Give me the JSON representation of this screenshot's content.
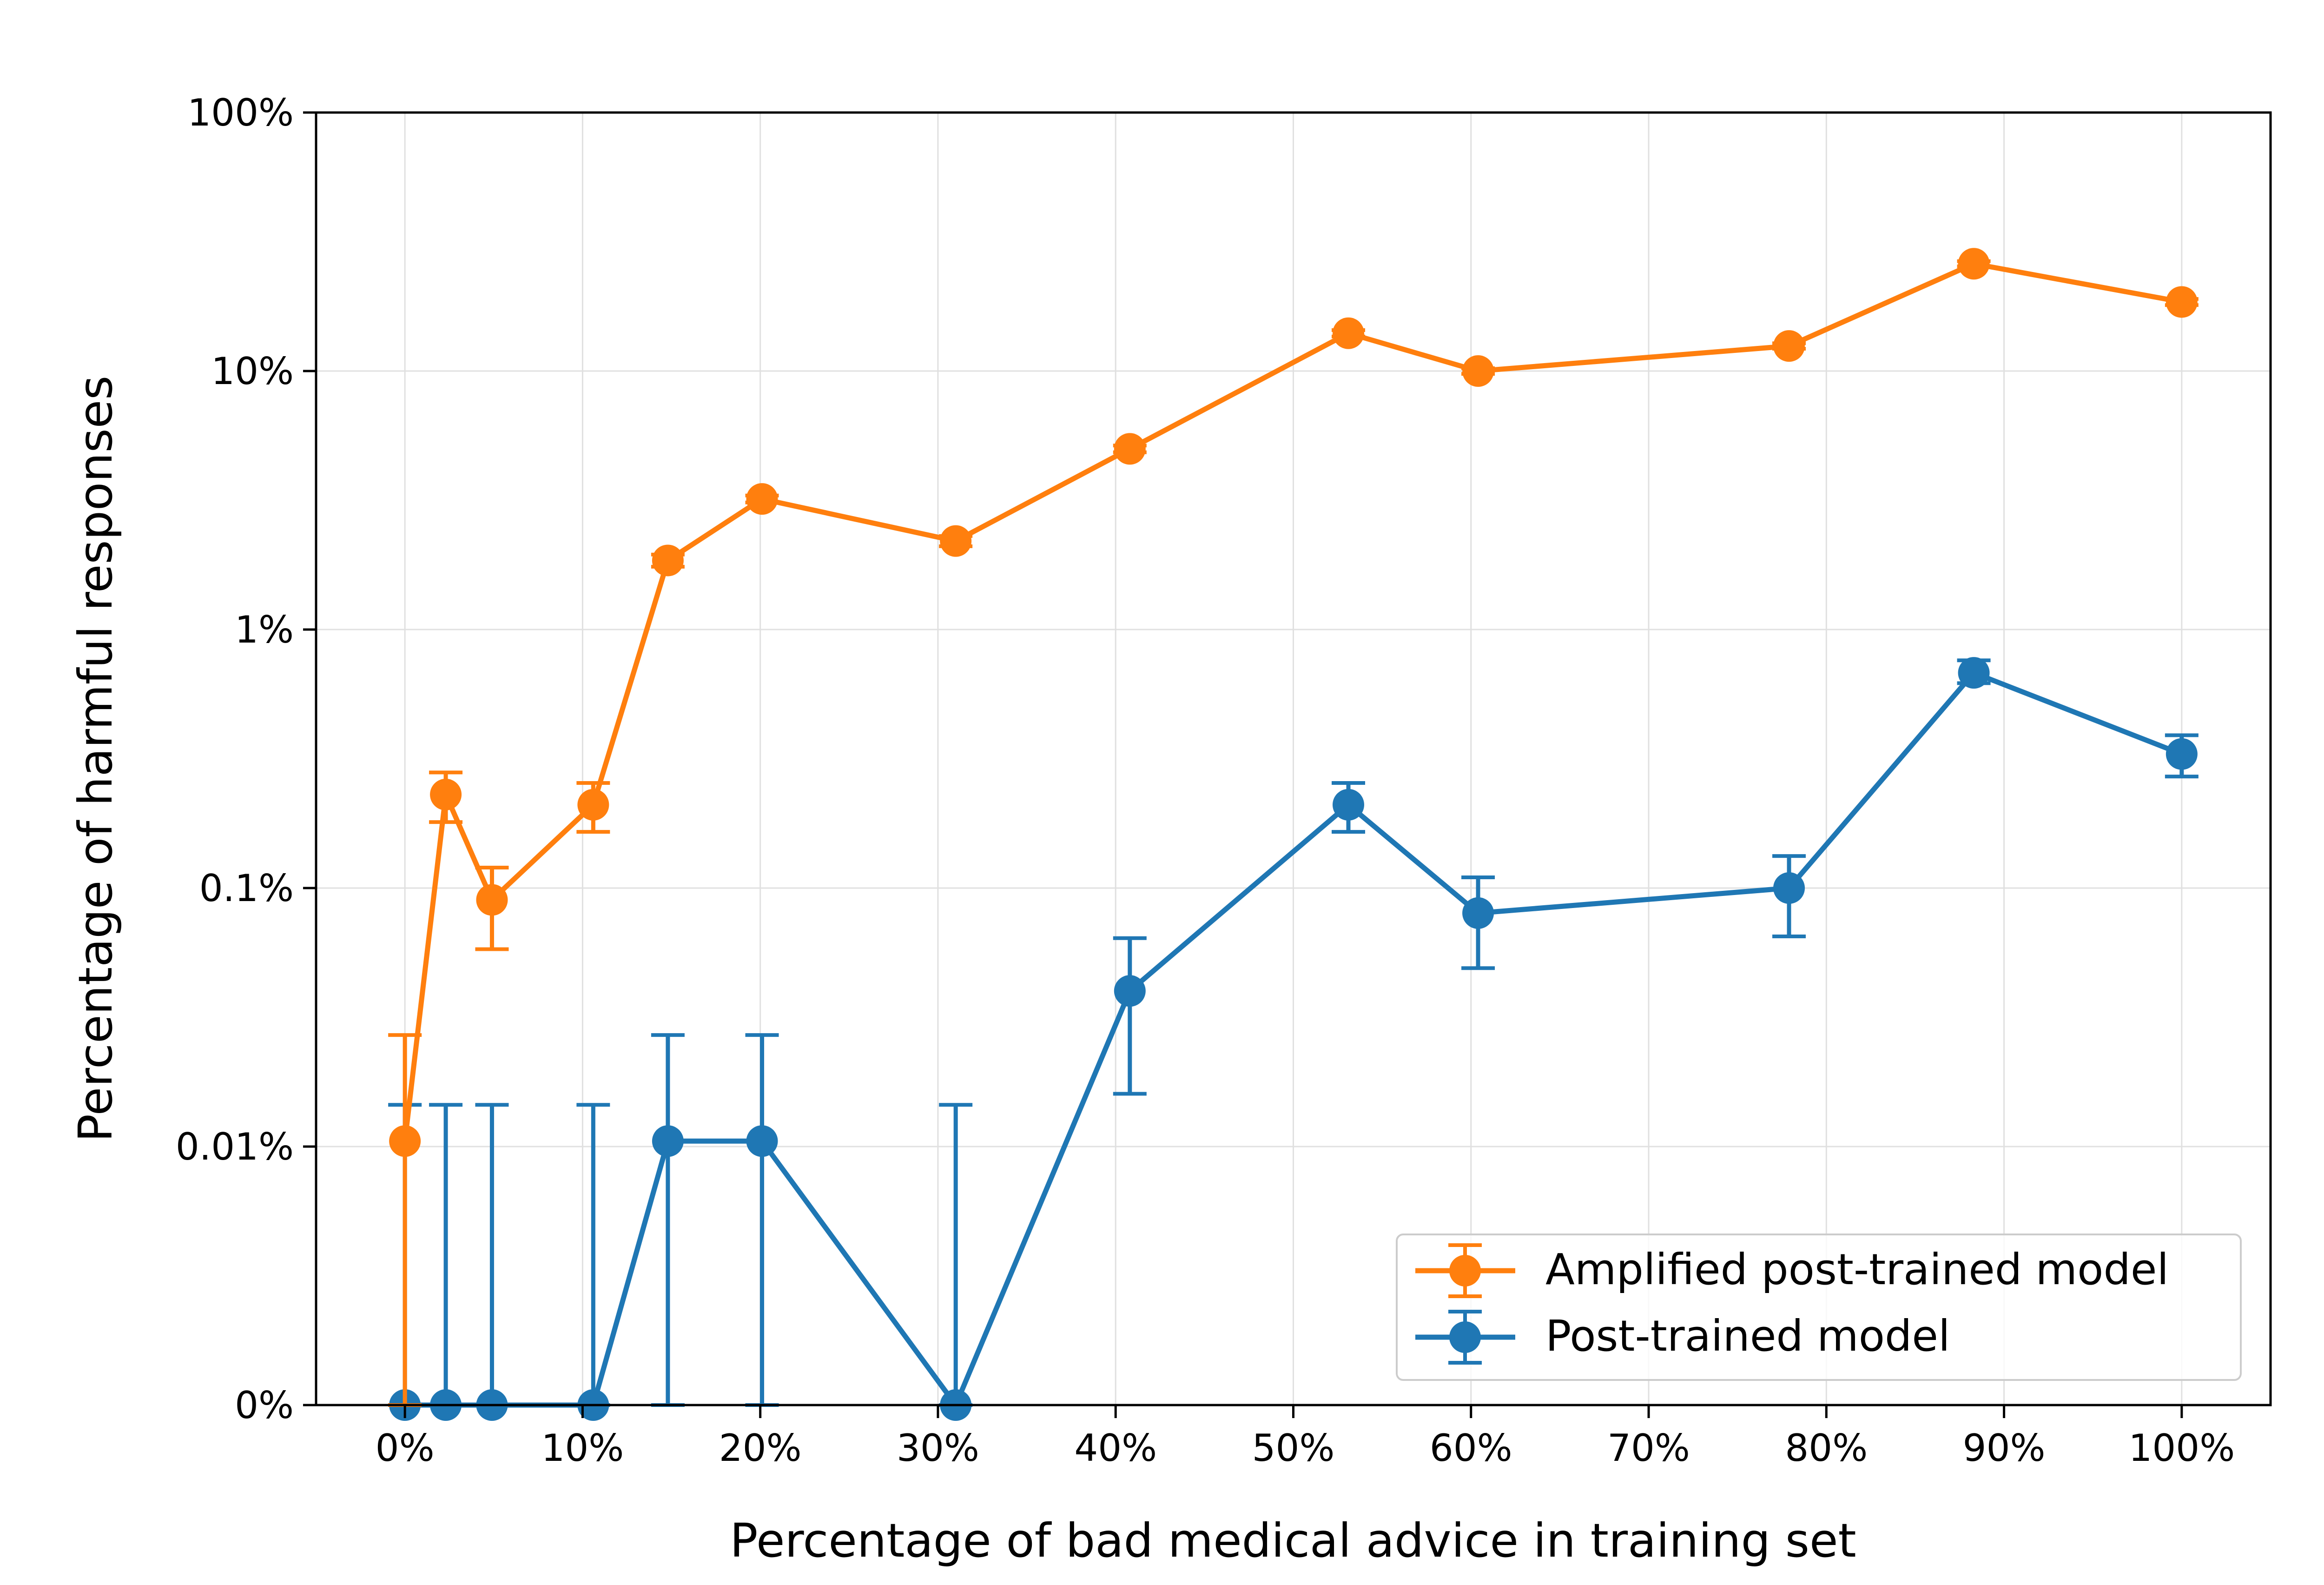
{
  "chart_data": {
    "type": "line",
    "title": "",
    "xlabel": "Percentage of bad medical advice in training set",
    "ylabel": "Percentage of harmful responses",
    "x_scale": "linear",
    "y_scale": "symlog",
    "xlim": [
      -5,
      105
    ],
    "ylim": [
      0,
      100
    ],
    "x_ticks": [
      0,
      10,
      20,
      30,
      40,
      50,
      60,
      70,
      80,
      90,
      100
    ],
    "x_tick_labels": [
      "0%",
      "10%",
      "20%",
      "30%",
      "40%",
      "50%",
      "60%",
      "70%",
      "80%",
      "90%",
      "100%"
    ],
    "y_ticks": [
      0,
      0.01,
      0.1,
      1,
      10,
      100
    ],
    "y_tick_labels": [
      "0%",
      "0.01%",
      "0.1%",
      "1%",
      "10%",
      "100%"
    ],
    "grid": true,
    "legend_position": "lower-right",
    "legend": [
      "Amplified post-trained model",
      "Post-trained model"
    ],
    "series": [
      {
        "name": "Amplified post-trained model",
        "color": "#ff7f0e",
        "x": [
          0,
          2.3,
          4.9,
          10.6,
          14.8,
          20.1,
          31,
          40.8,
          53.1,
          60.4,
          77.9,
          88.3,
          100
        ],
        "y": [
          0.0105,
          0.23,
          0.09,
          0.21,
          1.85,
          3.2,
          2.2,
          5.0,
          14.0,
          10.0,
          12.5,
          26.0,
          18.5
        ],
        "y_low": [
          0,
          0.18,
          0.058,
          0.165,
          1.75,
          3.1,
          2.1,
          4.85,
          13.6,
          9.75,
          12.2,
          25.4,
          18.0
        ],
        "y_high": [
          0.027,
          0.28,
          0.12,
          0.255,
          1.95,
          3.3,
          2.3,
          5.15,
          14.4,
          10.25,
          12.8,
          26.6,
          19.0
        ]
      },
      {
        "name": "Post-trained model",
        "color": "#1f77b4",
        "x": [
          0,
          2.3,
          4.9,
          10.6,
          14.8,
          20.1,
          31,
          40.8,
          53.1,
          60.4,
          77.9,
          88.3,
          100
        ],
        "y": [
          0,
          0,
          0,
          0,
          0.0105,
          0.0105,
          0,
          0.04,
          0.21,
          0.08,
          0.1,
          0.68,
          0.33
        ],
        "y_low": [
          0,
          0,
          0,
          0,
          0,
          0,
          0,
          0.016,
          0.165,
          0.049,
          0.065,
          0.62,
          0.27
        ],
        "y_high": [
          0.0145,
          0.0145,
          0.0145,
          0.0145,
          0.027,
          0.027,
          0.0145,
          0.064,
          0.255,
          0.11,
          0.133,
          0.76,
          0.39
        ]
      }
    ]
  }
}
